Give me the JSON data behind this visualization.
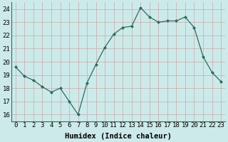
{
  "x": [
    0,
    1,
    2,
    3,
    4,
    5,
    6,
    7,
    8,
    9,
    10,
    11,
    12,
    13,
    14,
    15,
    16,
    17,
    18,
    19,
    20,
    21,
    22,
    23
  ],
  "y": [
    19.6,
    18.9,
    18.6,
    18.1,
    17.7,
    18.0,
    17.0,
    16.0,
    18.4,
    19.8,
    21.1,
    22.1,
    22.6,
    22.7,
    24.1,
    23.4,
    23.0,
    23.1,
    23.1,
    23.4,
    22.6,
    20.4,
    19.2,
    18.5
  ],
  "line_color": "#2d6b5e",
  "bg_color": "#cdeaea",
  "grid_color": "#b0d0d0",
  "axis_color": "#2d6b5e",
  "xlabel": "Humidex (Indice chaleur)",
  "ylim": [
    15.5,
    24.5
  ],
  "xlim": [
    -0.5,
    23.5
  ],
  "yticks": [
    16,
    17,
    18,
    19,
    20,
    21,
    22,
    23,
    24
  ],
  "xticks": [
    0,
    1,
    2,
    3,
    4,
    5,
    6,
    7,
    8,
    9,
    10,
    11,
    12,
    13,
    14,
    15,
    16,
    17,
    18,
    19,
    20,
    21,
    22,
    23
  ],
  "xlabel_fontsize": 7.5,
  "tick_fontsize": 6.5
}
